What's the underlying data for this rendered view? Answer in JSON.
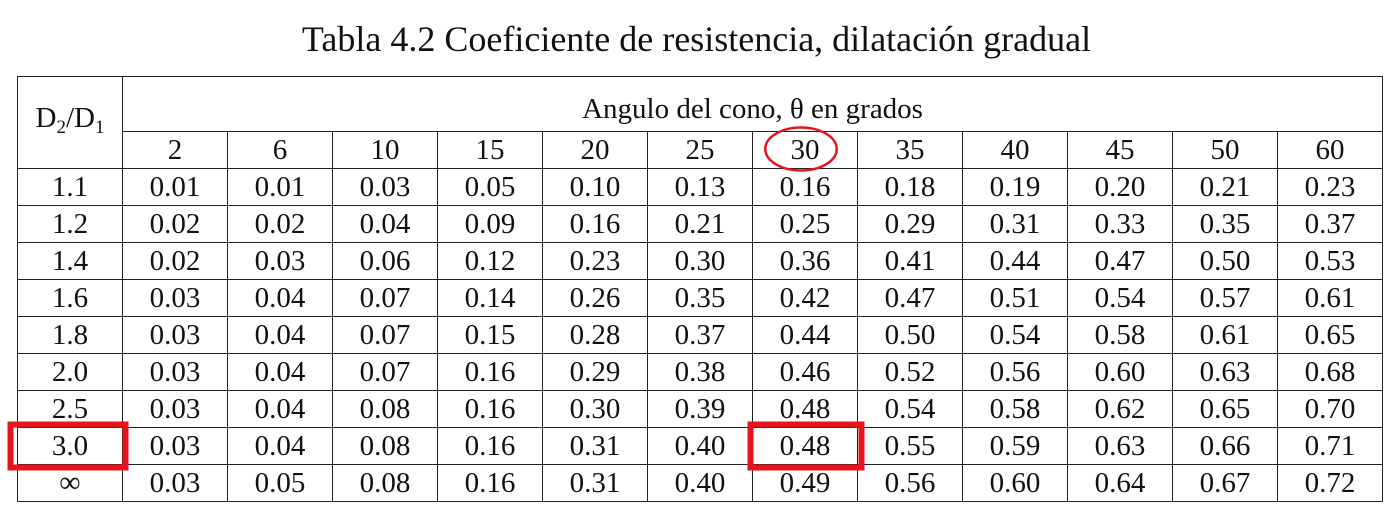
{
  "title": "Tabla 4.2 Coeficiente de resistencia, dilatación gradual",
  "header": {
    "ratio_main": "D",
    "ratio_sub1": "2",
    "ratio_sep": "/D",
    "ratio_sub2": "1",
    "angle_label": "Angulo del cono, θ en grados",
    "angles": [
      "2",
      "6",
      "10",
      "15",
      "20",
      "25",
      "30",
      "35",
      "40",
      "45",
      "50",
      "60"
    ]
  },
  "rows": [
    {
      "ratio": "1.1",
      "values": [
        "0.01",
        "0.01",
        "0.03",
        "0.05",
        "0.10",
        "0.13",
        "0.16",
        "0.18",
        "0.19",
        "0.20",
        "0.21",
        "0.23"
      ]
    },
    {
      "ratio": "1.2",
      "values": [
        "0.02",
        "0.02",
        "0.04",
        "0.09",
        "0.16",
        "0.21",
        "0.25",
        "0.29",
        "0.31",
        "0.33",
        "0.35",
        "0.37"
      ]
    },
    {
      "ratio": "1.4",
      "values": [
        "0.02",
        "0.03",
        "0.06",
        "0.12",
        "0.23",
        "0.30",
        "0.36",
        "0.41",
        "0.44",
        "0.47",
        "0.50",
        "0.53"
      ]
    },
    {
      "ratio": "1.6",
      "values": [
        "0.03",
        "0.04",
        "0.07",
        "0.14",
        "0.26",
        "0.35",
        "0.42",
        "0.47",
        "0.51",
        "0.54",
        "0.57",
        "0.61"
      ]
    },
    {
      "ratio": "1.8",
      "values": [
        "0.03",
        "0.04",
        "0.07",
        "0.15",
        "0.28",
        "0.37",
        "0.44",
        "0.50",
        "0.54",
        "0.58",
        "0.61",
        "0.65"
      ]
    },
    {
      "ratio": "2.0",
      "values": [
        "0.03",
        "0.04",
        "0.07",
        "0.16",
        "0.29",
        "0.38",
        "0.46",
        "0.52",
        "0.56",
        "0.60",
        "0.63",
        "0.68"
      ]
    },
    {
      "ratio": "2.5",
      "values": [
        "0.03",
        "0.04",
        "0.08",
        "0.16",
        "0.30",
        "0.39",
        "0.48",
        "0.54",
        "0.58",
        "0.62",
        "0.65",
        "0.70"
      ]
    },
    {
      "ratio": "3.0",
      "values": [
        "0.03",
        "0.04",
        "0.08",
        "0.16",
        "0.31",
        "0.40",
        "0.48",
        "0.55",
        "0.59",
        "0.63",
        "0.66",
        "0.71"
      ]
    },
    {
      "ratio": "∞",
      "values": [
        "0.03",
        "0.05",
        "0.08",
        "0.16",
        "0.31",
        "0.40",
        "0.49",
        "0.56",
        "0.60",
        "0.64",
        "0.67",
        "0.72"
      ]
    }
  ],
  "annotations": {
    "color": "#e8141c",
    "circled_angle": "30",
    "boxed_row_ratio": "3.0",
    "boxed_value": "0.48"
  }
}
